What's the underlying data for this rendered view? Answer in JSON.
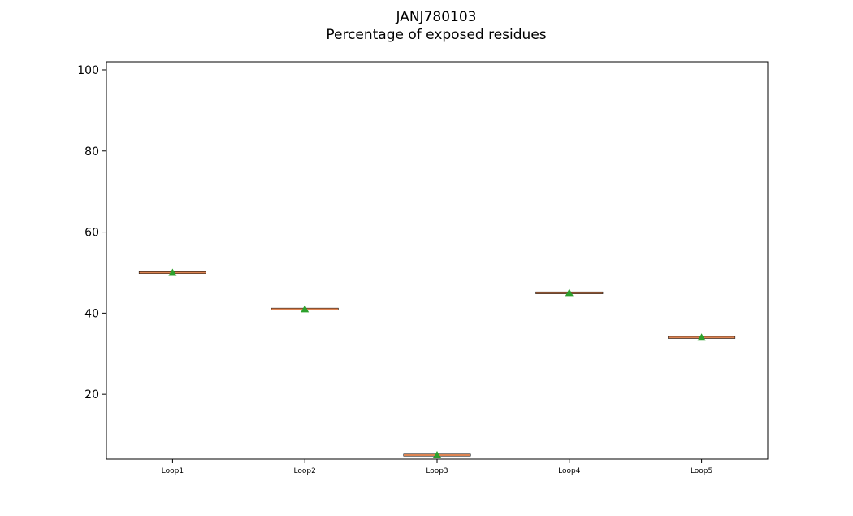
{
  "chart_data": {
    "type": "box",
    "title": "JANJ780103",
    "subtitle": "Percentage of exposed residues",
    "categories": [
      "Loop1",
      "Loop2",
      "Loop3",
      "Loop4",
      "Loop5"
    ],
    "values": [
      50,
      41,
      5,
      45,
      34
    ],
    "means": [
      50,
      41,
      5,
      45,
      34
    ],
    "ylim": [
      4,
      102
    ],
    "yticks": [
      20,
      40,
      60,
      80,
      100
    ],
    "grid": false,
    "colors": {
      "box": "#000000",
      "median": "#dd8452",
      "mean_marker": "#2ca02c"
    }
  }
}
